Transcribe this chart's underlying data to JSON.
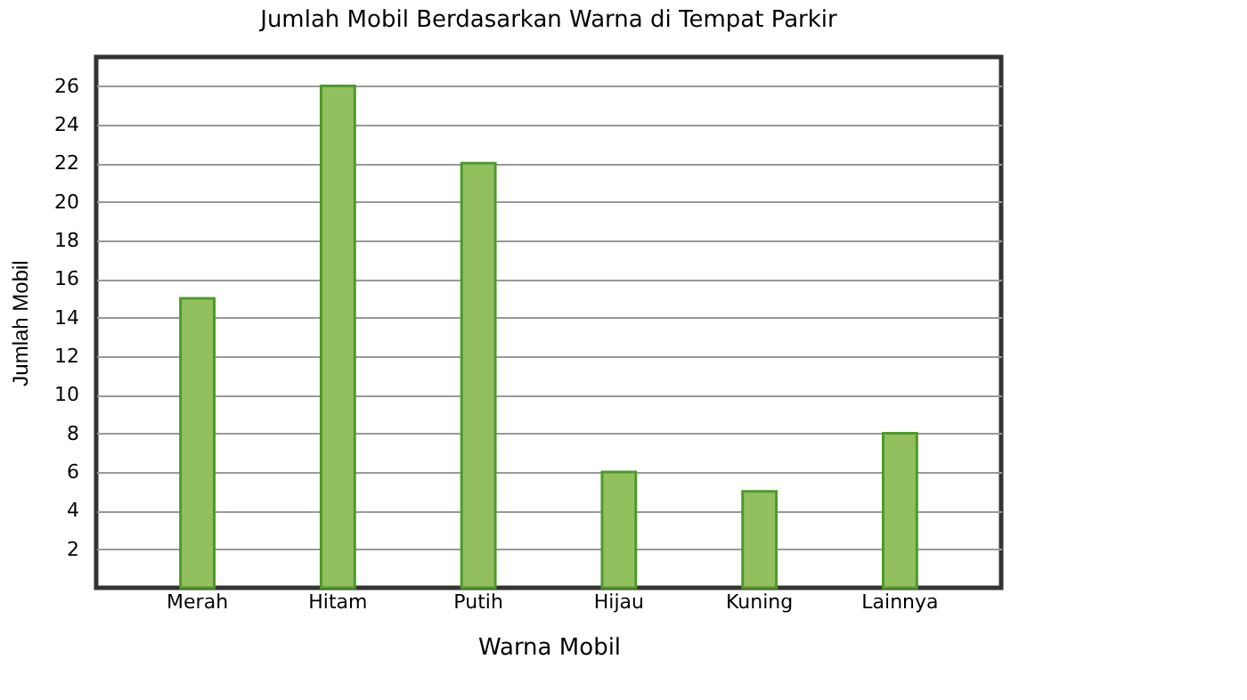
{
  "chart_data": {
    "type": "bar",
    "title": "Jumlah Mobil Berdasarkan Warna di Tempat Parkir",
    "xlabel": "Warna Mobil",
    "ylabel": "Jumlah Mobil",
    "categories": [
      "Merah",
      "Hitam",
      "Putih",
      "Hijau",
      "Kuning",
      "Lainnya"
    ],
    "values": [
      15,
      26,
      22,
      6,
      5,
      8
    ],
    "color": "#92c05f",
    "ylim": [
      0,
      27.5
    ],
    "yticks": [
      2,
      4,
      6,
      8,
      10,
      12,
      14,
      16,
      18,
      20,
      22,
      24,
      26
    ],
    "grid": "y"
  }
}
